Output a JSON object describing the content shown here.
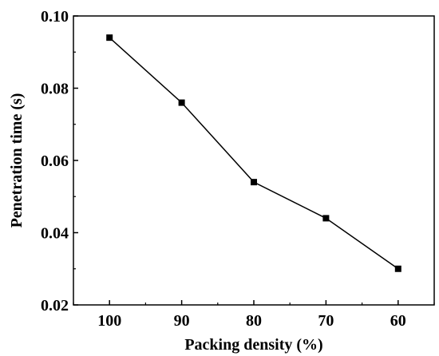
{
  "chart_data": {
    "type": "line",
    "title": "",
    "xlabel": "Packing density (%)",
    "ylabel": "Penetration time (s)",
    "x": [
      100,
      90,
      80,
      70,
      60
    ],
    "x_tick_labels": [
      "100",
      "90",
      "80",
      "70",
      "60"
    ],
    "xlim": [
      105,
      55
    ],
    "ylim": [
      0.02,
      0.1
    ],
    "y_ticks": [
      0.02,
      0.04,
      0.06,
      0.08,
      0.1
    ],
    "y_tick_labels": [
      "0.02",
      "0.04",
      "0.06",
      "0.08",
      "0.10"
    ],
    "series": [
      {
        "values": [
          0.094,
          0.076,
          0.054,
          0.044,
          0.03
        ],
        "color": "#000000",
        "marker": "square"
      }
    ],
    "grid": false,
    "legend": "none"
  }
}
